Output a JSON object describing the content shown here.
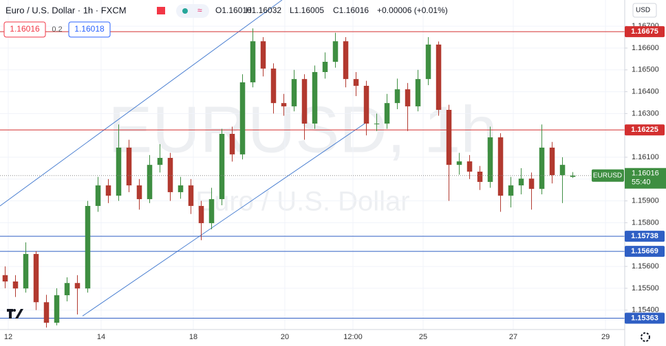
{
  "chart_data": {
    "type": "candlestick",
    "symbol_title": "Euro / U.S. Dollar · 1h · FXCM",
    "watermark_symbol": "EURUSD, 1h",
    "watermark_name": "Euro / U.S. Dollar",
    "readout": [
      "O1.16010",
      "H1.16032",
      "L1.16005",
      "C1.16016",
      "+0.00006 (+0.01%)"
    ],
    "sell_price": "1.16016",
    "spread": "0.2",
    "buy_price": "1.16018",
    "currency": "USD",
    "last_price_symbol": "EURUSD",
    "last_price": 1.16016,
    "countdown": "55:40",
    "up_color": "#3e8e41",
    "down_color": "#b2392f",
    "series": {
      "open": [
        1.1556,
        1.15531,
        1.15499,
        1.15657,
        1.15436,
        1.15342,
        1.15468,
        1.15524,
        1.15499,
        1.15877,
        1.15971,
        1.15924,
        1.16144,
        1.15971,
        1.15908,
        1.16065,
        1.16097,
        1.1594,
        1.15971,
        1.15877,
        1.15798,
        1.15908,
        1.16207,
        1.16113,
        1.16443,
        1.16631,
        1.16506,
        1.16348,
        1.16333,
        1.16458,
        1.16254,
        1.1649,
        1.16537,
        1.16631,
        1.16458,
        1.16427,
        1.16254,
        1.16254,
        1.16348,
        1.16411,
        1.16333,
        1.16458,
        1.16616,
        1.16317,
        1.16065,
        1.16081,
        1.16034,
        1.15987,
        1.16191,
        1.15924,
        1.15971,
        1.16002,
        1.15955,
        1.16144,
        1.16018,
        1.1601
      ],
      "high": [
        1.156,
        1.1556,
        1.1571,
        1.1567,
        1.1547,
        1.155,
        1.1555,
        1.1556,
        1.159,
        1.1601,
        1.16,
        1.1625,
        1.1618,
        1.16,
        1.1611,
        1.1616,
        1.1612,
        1.1601,
        1.16,
        1.159,
        1.1596,
        1.1623,
        1.1624,
        1.1648,
        1.1669,
        1.1665,
        1.1653,
        1.1639,
        1.165,
        1.1648,
        1.1652,
        1.1658,
        1.1667,
        1.1665,
        1.1649,
        1.1645,
        1.163,
        1.1639,
        1.1646,
        1.1644,
        1.165,
        1.1665,
        1.1663,
        1.1634,
        1.1612,
        1.1611,
        1.1606,
        1.1624,
        1.1621,
        1.1601,
        1.1605,
        1.1603,
        1.1625,
        1.1617,
        1.161,
        1.16032
      ],
      "low": [
        1.155,
        1.1546,
        1.1548,
        1.154,
        1.1532,
        1.1533,
        1.1544,
        1.1538,
        1.1548,
        1.1585,
        1.1589,
        1.159,
        1.1594,
        1.1586,
        1.1589,
        1.1603,
        1.159,
        1.1591,
        1.1584,
        1.1572,
        1.1577,
        1.1588,
        1.1608,
        1.1609,
        1.1642,
        1.1647,
        1.163,
        1.1629,
        1.1631,
        1.1618,
        1.1623,
        1.1646,
        1.1651,
        1.1642,
        1.1638,
        1.162,
        1.1622,
        1.1623,
        1.1632,
        1.1622,
        1.1631,
        1.1643,
        1.1629,
        1.159,
        1.1602,
        1.16,
        1.1595,
        1.1596,
        1.1585,
        1.1587,
        1.1593,
        1.1586,
        1.1593,
        1.1598,
        1.1589,
        1.16005
      ],
      "close": [
        1.15531,
        1.15499,
        1.15657,
        1.15436,
        1.15342,
        1.15468,
        1.15524,
        1.15499,
        1.15877,
        1.15971,
        1.15924,
        1.16144,
        1.15971,
        1.15908,
        1.16065,
        1.16097,
        1.1594,
        1.15971,
        1.15877,
        1.15798,
        1.15908,
        1.16207,
        1.16113,
        1.16443,
        1.16631,
        1.16506,
        1.16348,
        1.16333,
        1.16458,
        1.16254,
        1.1649,
        1.16537,
        1.16631,
        1.16458,
        1.16427,
        1.16254,
        1.16254,
        1.16348,
        1.16411,
        1.16333,
        1.16458,
        1.16616,
        1.16317,
        1.16065,
        1.16081,
        1.16034,
        1.15987,
        1.16191,
        1.15924,
        1.15971,
        1.16002,
        1.15955,
        1.16144,
        1.16018,
        1.16065,
        1.16016
      ]
    },
    "xlim": [
      -0.5,
      60.03
    ],
    "xticks": [
      {
        "value": 0.3,
        "label": "12"
      },
      {
        "value": 9.3,
        "label": "14"
      },
      {
        "value": 18.23,
        "label": "18"
      },
      {
        "value": 27.1,
        "label": "20"
      },
      {
        "value": 33.7,
        "label": "12:00"
      },
      {
        "value": 40.5,
        "label": "25"
      },
      {
        "value": 49.23,
        "label": "27"
      },
      {
        "value": 58.17,
        "label": "29"
      }
    ],
    "ylim": [
      1.15311,
      1.1682
    ],
    "yticks": [
      {
        "value": 1.167,
        "label": "1.16700"
      },
      {
        "value": 1.166,
        "label": "1.16600"
      },
      {
        "value": 1.165,
        "label": "1.16500"
      },
      {
        "value": 1.164,
        "label": "1.16400"
      },
      {
        "value": 1.163,
        "label": "1.16300"
      },
      {
        "value": 1.161,
        "label": "1.16100"
      },
      {
        "value": 1.16,
        "label": "1.16000"
      },
      {
        "value": 1.159,
        "label": "1.15900"
      },
      {
        "value": 1.158,
        "label": "1.15800"
      },
      {
        "value": 1.156,
        "label": "1.15600"
      },
      {
        "value": 1.155,
        "label": "1.15500"
      },
      {
        "value": 1.154,
        "label": "1.15400"
      }
    ],
    "price_lines": [
      {
        "value": 1.16675,
        "color": "#d32f2f"
      },
      {
        "value": 1.16225,
        "color": "#d32f2f"
      },
      {
        "value": 1.15738,
        "color": "#2f5fc4"
      },
      {
        "value": 1.15669,
        "color": "#2f5fc4"
      },
      {
        "value": 1.15363,
        "color": "#2f5fc4"
      }
    ],
    "trendlines": [
      {
        "x": [
          -0.5,
          26.83
        ],
        "y": [
          1.15877,
          1.1682
        ],
        "color": "#4a7fd1"
      },
      {
        "x": [
          7.5,
          34.83
        ],
        "y": [
          1.15373,
          1.16254
        ],
        "color": "#4a7fd1"
      }
    ]
  }
}
